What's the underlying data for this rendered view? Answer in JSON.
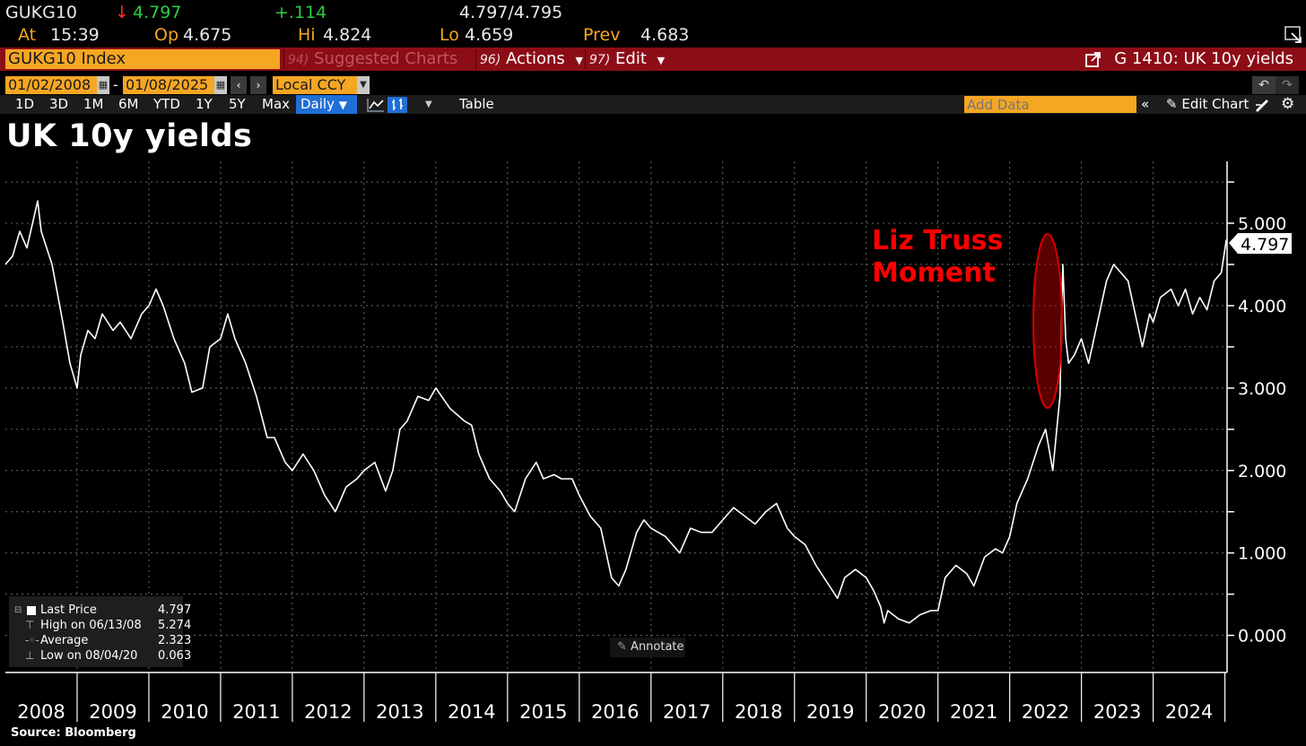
{
  "quote": {
    "ticker": "GUKG10",
    "arrow": "↓",
    "last": "4.797",
    "change": "+.114",
    "bid_ask": "4.797/4.795",
    "time_label": "At",
    "time": "15:39",
    "open_label": "Op",
    "open": "4.675",
    "high_label": "Hi",
    "high": "4.824",
    "low_label": "Lo",
    "low": "4.659",
    "prev_label": "Prev",
    "prev": "4.683"
  },
  "command_bar": {
    "security": "GUKG10 Index",
    "suggested_num": "94)",
    "suggested_label": "Suggested Charts",
    "actions_num": "96)",
    "actions_label": "Actions",
    "edit_num": "97)",
    "edit_label": "Edit",
    "chart_ident": "G 1410: UK 10y yields"
  },
  "date_row": {
    "start_date": "01/02/2008",
    "separator": "-",
    "end_date": "01/08/2025",
    "currency": "Local CCY"
  },
  "period_row": {
    "periods": [
      "1D",
      "3D",
      "1M",
      "6M",
      "YTD",
      "1Y",
      "5Y",
      "Max"
    ],
    "frequency": "Daily",
    "table_label": "Table",
    "add_data_placeholder": "Add Data",
    "edit_chart_label": "Edit Chart"
  },
  "chart": {
    "title": "UK 10y yields",
    "last_value_tag": "4.797",
    "annotation": "Liz Truss\nMoment",
    "annotation_line1": "Liz Truss",
    "annotation_line2": "Moment",
    "annotate_button": "Annotate",
    "source": "Source: Bloomberg",
    "legend": {
      "last_price_label": "Last Price",
      "last_price_value": "4.797",
      "high_label": "High on 06/13/08",
      "high_value": "5.274",
      "average_label": "Average",
      "average_value": "2.323",
      "low_label": "Low on 08/04/20",
      "low_value": "0.063"
    },
    "line_color": "#ffffff",
    "annotation_color": "#ff0000"
  },
  "chart_data": {
    "type": "line",
    "title": "UK 10y yields",
    "xlabel": "",
    "ylabel": "",
    "x_ticks": [
      "2008",
      "2009",
      "2010",
      "2011",
      "2012",
      "2013",
      "2014",
      "2015",
      "2016",
      "2017",
      "2018",
      "2019",
      "2020",
      "2021",
      "2022",
      "2023",
      "2024"
    ],
    "y_ticks": [
      "0.000",
      "1.000",
      "2.000",
      "3.000",
      "4.000",
      "5.000"
    ],
    "ylim": [
      -0.45,
      5.75
    ],
    "xlim": [
      2008.0,
      2025.03
    ],
    "grid": true,
    "legend_position": "bottom-left",
    "series": [
      {
        "name": "Last Price",
        "x": [
          2008.0,
          2008.1,
          2008.2,
          2008.3,
          2008.45,
          2008.5,
          2008.65,
          2008.8,
          2008.9,
          2009.0,
          2009.05,
          2009.15,
          2009.25,
          2009.35,
          2009.5,
          2009.6,
          2009.75,
          2009.9,
          2010.0,
          2010.1,
          2010.2,
          2010.35,
          2010.5,
          2010.6,
          2010.75,
          2010.85,
          2011.0,
          2011.1,
          2011.2,
          2011.35,
          2011.5,
          2011.65,
          2011.75,
          2011.9,
          2012.0,
          2012.15,
          2012.3,
          2012.45,
          2012.6,
          2012.75,
          2012.9,
          2013.0,
          2013.15,
          2013.3,
          2013.4,
          2013.5,
          2013.6,
          2013.75,
          2013.9,
          2014.0,
          2014.2,
          2014.4,
          2014.5,
          2014.6,
          2014.75,
          2014.9,
          2015.0,
          2015.1,
          2015.25,
          2015.4,
          2015.5,
          2015.65,
          2015.75,
          2015.9,
          2016.0,
          2016.15,
          2016.3,
          2016.45,
          2016.55,
          2016.65,
          2016.8,
          2016.9,
          2017.0,
          2017.2,
          2017.4,
          2017.55,
          2017.7,
          2017.85,
          2018.0,
          2018.15,
          2018.3,
          2018.45,
          2018.6,
          2018.75,
          2018.9,
          2019.0,
          2019.15,
          2019.3,
          2019.45,
          2019.6,
          2019.7,
          2019.85,
          2020.0,
          2020.1,
          2020.2,
          2020.25,
          2020.3,
          2020.45,
          2020.6,
          2020.75,
          2020.9,
          2021.0,
          2021.1,
          2021.25,
          2021.4,
          2021.5,
          2021.65,
          2021.8,
          2021.9,
          2022.0,
          2022.1,
          2022.25,
          2022.4,
          2022.5,
          2022.6,
          2022.7,
          2022.74,
          2022.78,
          2022.82,
          2022.9,
          2023.0,
          2023.1,
          2023.25,
          2023.35,
          2023.45,
          2023.55,
          2023.65,
          2023.75,
          2023.85,
          2023.95,
          2024.0,
          2024.1,
          2024.25,
          2024.35,
          2024.45,
          2024.55,
          2024.65,
          2024.75,
          2024.85,
          2024.95,
          2025.02
        ],
        "values": [
          4.5,
          4.6,
          4.9,
          4.7,
          5.27,
          4.9,
          4.5,
          3.8,
          3.3,
          3.0,
          3.4,
          3.7,
          3.6,
          3.9,
          3.7,
          3.8,
          3.6,
          3.9,
          4.0,
          4.2,
          4.0,
          3.6,
          3.3,
          2.95,
          3.0,
          3.5,
          3.6,
          3.9,
          3.6,
          3.3,
          2.9,
          2.4,
          2.4,
          2.1,
          2.0,
          2.2,
          2.0,
          1.7,
          1.5,
          1.8,
          1.9,
          2.0,
          2.1,
          1.75,
          2.0,
          2.5,
          2.6,
          2.9,
          2.85,
          3.0,
          2.75,
          2.6,
          2.55,
          2.2,
          1.9,
          1.75,
          1.6,
          1.5,
          1.9,
          2.1,
          1.9,
          1.95,
          1.9,
          1.9,
          1.7,
          1.45,
          1.3,
          0.7,
          0.6,
          0.8,
          1.25,
          1.4,
          1.3,
          1.2,
          1.0,
          1.3,
          1.25,
          1.25,
          1.4,
          1.55,
          1.45,
          1.35,
          1.5,
          1.6,
          1.3,
          1.2,
          1.1,
          0.85,
          0.65,
          0.45,
          0.7,
          0.8,
          0.7,
          0.55,
          0.35,
          0.15,
          0.3,
          0.2,
          0.15,
          0.25,
          0.3,
          0.3,
          0.7,
          0.85,
          0.75,
          0.6,
          0.95,
          1.05,
          1.0,
          1.2,
          1.6,
          1.9,
          2.3,
          2.5,
          2.0,
          2.9,
          4.5,
          3.6,
          3.3,
          3.4,
          3.6,
          3.3,
          3.9,
          4.3,
          4.5,
          4.4,
          4.3,
          3.9,
          3.5,
          3.9,
          3.8,
          4.1,
          4.2,
          4.0,
          4.2,
          3.9,
          4.1,
          3.95,
          4.3,
          4.4,
          4.8
        ]
      }
    ]
  }
}
